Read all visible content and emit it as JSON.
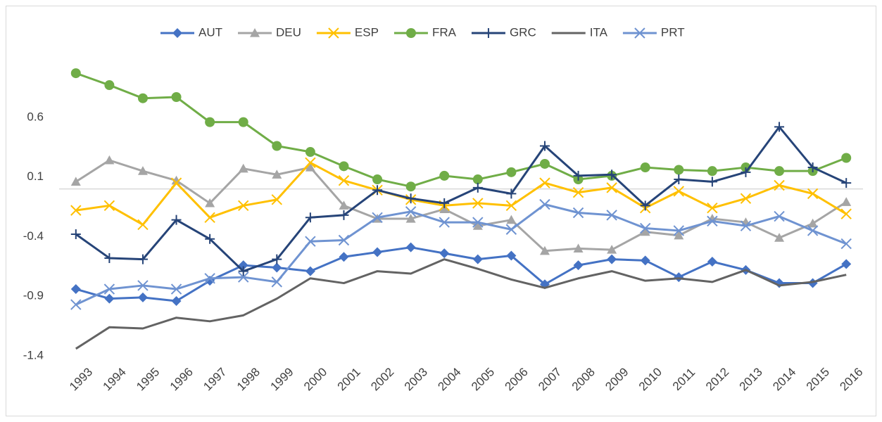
{
  "chart_data": {
    "type": "line",
    "categories": [
      "1993",
      "1994",
      "1995",
      "1996",
      "1997",
      "1998",
      "1999",
      "2000",
      "2001",
      "2002",
      "2003",
      "2004",
      "2005",
      "2006",
      "2007",
      "2008",
      "2009",
      "2010",
      "2011",
      "2012",
      "2013",
      "2014",
      "2015",
      "2016"
    ],
    "series": [
      {
        "name": "AUT",
        "color": "#4472c4",
        "marker": "diamond",
        "values": [
          -0.84,
          -0.92,
          -0.91,
          -0.94,
          -0.77,
          -0.64,
          -0.66,
          -0.69,
          -0.57,
          -0.53,
          -0.49,
          -0.54,
          -0.59,
          -0.56,
          -0.8,
          -0.64,
          -0.59,
          -0.6,
          -0.74,
          -0.61,
          -0.68,
          -0.79,
          -0.79,
          -0.63
        ]
      },
      {
        "name": "DEU",
        "color": "#a5a5a5",
        "marker": "triangle",
        "values": [
          0.06,
          0.24,
          0.15,
          0.07,
          -0.12,
          0.17,
          0.12,
          0.18,
          -0.14,
          -0.25,
          -0.25,
          -0.17,
          -0.31,
          -0.26,
          -0.52,
          -0.5,
          -0.51,
          -0.36,
          -0.39,
          -0.25,
          -0.28,
          -0.41,
          -0.29,
          -0.11
        ]
      },
      {
        "name": "ESP",
        "color": "#ffc000",
        "marker": "x",
        "values": [
          -0.18,
          -0.14,
          -0.3,
          0.05,
          -0.24,
          -0.14,
          -0.09,
          0.22,
          0.07,
          -0.01,
          -0.09,
          -0.14,
          -0.12,
          -0.14,
          0.05,
          -0.03,
          0.01,
          -0.16,
          -0.02,
          -0.16,
          -0.08,
          0.03,
          -0.04,
          -0.21
        ]
      },
      {
        "name": "FRA",
        "color": "#70ad47",
        "marker": "circle",
        "values": [
          0.97,
          0.87,
          0.76,
          0.77,
          0.56,
          0.56,
          0.36,
          0.31,
          0.19,
          0.08,
          0.02,
          0.11,
          0.08,
          0.14,
          0.21,
          0.08,
          0.11,
          0.18,
          0.16,
          0.15,
          0.18,
          0.15,
          0.15,
          0.26
        ]
      },
      {
        "name": "GRC",
        "color": "#264478",
        "marker": "plus",
        "values": [
          -0.38,
          -0.58,
          -0.59,
          -0.26,
          -0.42,
          -0.69,
          -0.59,
          -0.24,
          -0.22,
          -0.01,
          -0.08,
          -0.12,
          0.01,
          -0.04,
          0.36,
          0.11,
          0.12,
          -0.14,
          0.08,
          0.06,
          0.14,
          0.52,
          0.18,
          0.05
        ]
      },
      {
        "name": "ITA",
        "color": "#636363",
        "marker": "none",
        "values": [
          -1.34,
          -1.16,
          -1.17,
          -1.08,
          -1.11,
          -1.06,
          -0.92,
          -0.75,
          -0.79,
          -0.69,
          -0.71,
          -0.59,
          -0.67,
          -0.76,
          -0.83,
          -0.75,
          -0.69,
          -0.77,
          -0.75,
          -0.78,
          -0.68,
          -0.81,
          -0.78,
          -0.72
        ]
      },
      {
        "name": "PRT",
        "color": "#6f93d1",
        "marker": "x",
        "values": [
          -0.97,
          -0.84,
          -0.81,
          -0.84,
          -0.75,
          -0.74,
          -0.78,
          -0.44,
          -0.43,
          -0.24,
          -0.19,
          -0.28,
          -0.28,
          -0.34,
          -0.13,
          -0.2,
          -0.22,
          -0.33,
          -0.35,
          -0.27,
          -0.31,
          -0.23,
          -0.35,
          -0.46
        ]
      }
    ],
    "ylim": [
      -1.4,
      1.0
    ],
    "yticks": [
      -1.4,
      -0.9,
      -0.4,
      0.1,
      0.6
    ],
    "legend": "top"
  }
}
